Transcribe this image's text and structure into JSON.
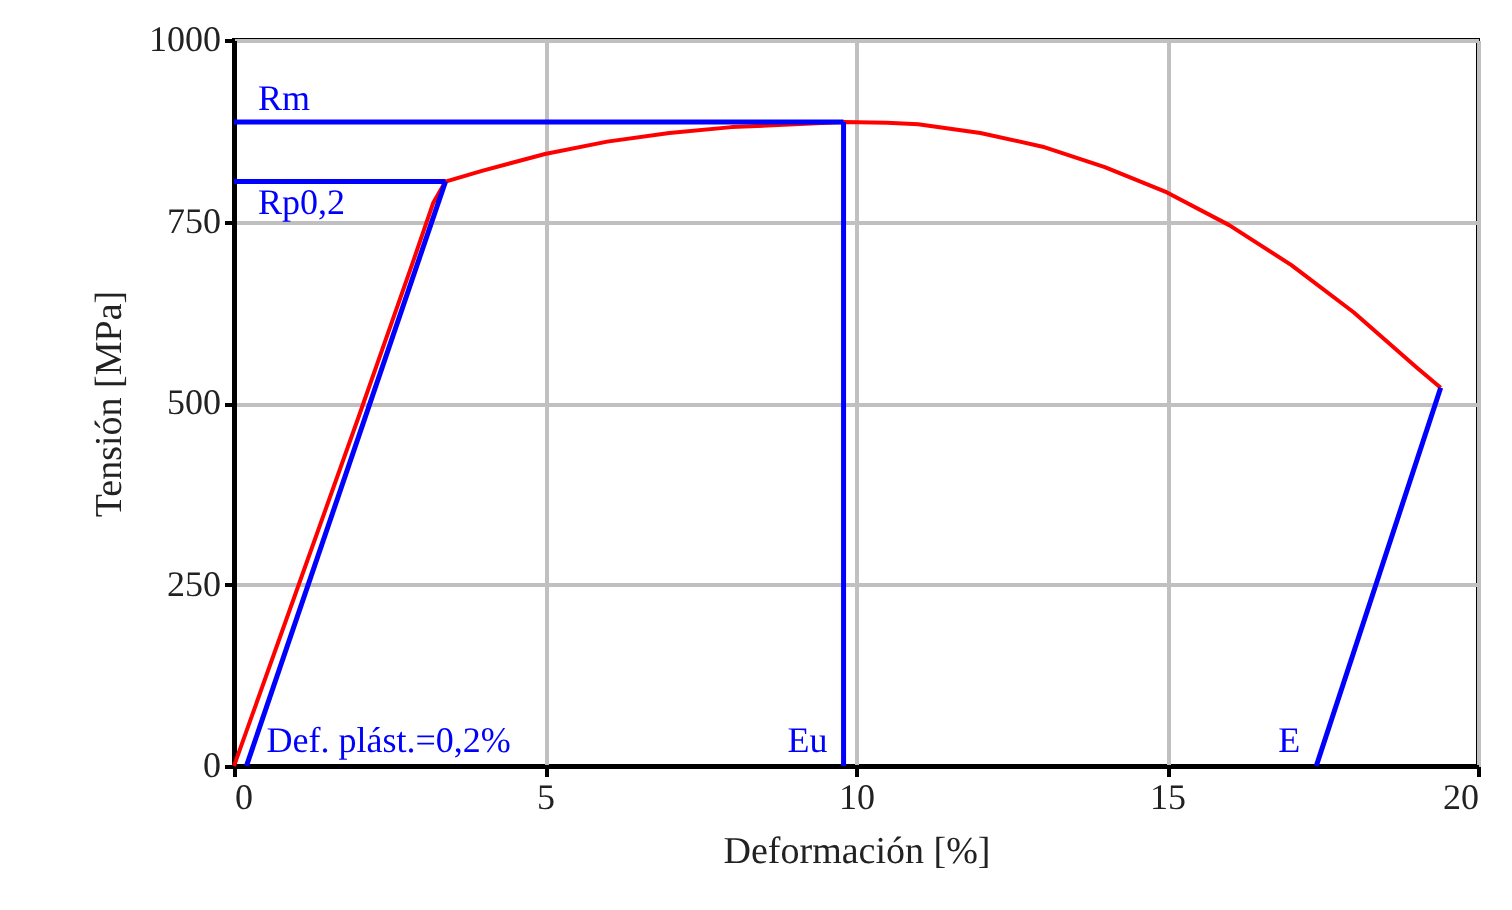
{
  "chart_data": {
    "type": "line",
    "xlabel": "Deformación  [%]",
    "ylabel": "Tensión  [MPa]",
    "xlim": [
      0,
      20
    ],
    "xticks": [
      0,
      5,
      10,
      15,
      20
    ],
    "ylim": [
      0,
      1000
    ],
    "yticks": [
      0,
      250,
      500,
      750,
      1000
    ],
    "grid": true,
    "marker": "none",
    "line_style": "solid",
    "series": [
      {
        "color": "#ff0000",
        "x": [
          0,
          1,
          2,
          2.9,
          3.2,
          3.4,
          4,
          5,
          6,
          7,
          8,
          9.8,
          10.5,
          11,
          12,
          13,
          14,
          15,
          16,
          17,
          18,
          19,
          19.4
        ],
        "values": [
          0,
          240,
          480,
          700,
          775,
          805,
          820,
          843,
          860,
          872,
          880,
          887,
          886,
          884,
          872,
          853,
          825,
          790,
          745,
          690,
          625,
          550,
          521
        ]
      },
      {
        "color": "#0000ff",
        "x": [
          3.4,
          0.2
        ],
        "values": [
          805,
          0
        ]
      },
      {
        "color": "#0000ff",
        "x": [
          3.4,
          0
        ],
        "values": [
          805,
          805
        ]
      },
      {
        "color": "#0000ff",
        "x": [
          9.8,
          0
        ],
        "values": [
          887,
          887
        ]
      },
      {
        "color": "#0000ff",
        "x": [
          9.8,
          9.8
        ],
        "values": [
          887,
          0
        ]
      },
      {
        "color": "#0000ff",
        "x": [
          19.4,
          17.4
        ],
        "values": [
          521,
          0
        ]
      }
    ],
    "annotations": [
      {
        "text": "Rm",
        "x": 0,
        "y": 887
      },
      {
        "text": "Rp0,2",
        "x": 0,
        "y": 805
      },
      {
        "text": "Def. plást.=0,2%",
        "x": 0.2,
        "y": 0
      },
      {
        "text": "Eu",
        "x": 9.8,
        "y": 0
      },
      {
        "text": "E",
        "x": 17.4,
        "y": 0
      }
    ]
  }
}
